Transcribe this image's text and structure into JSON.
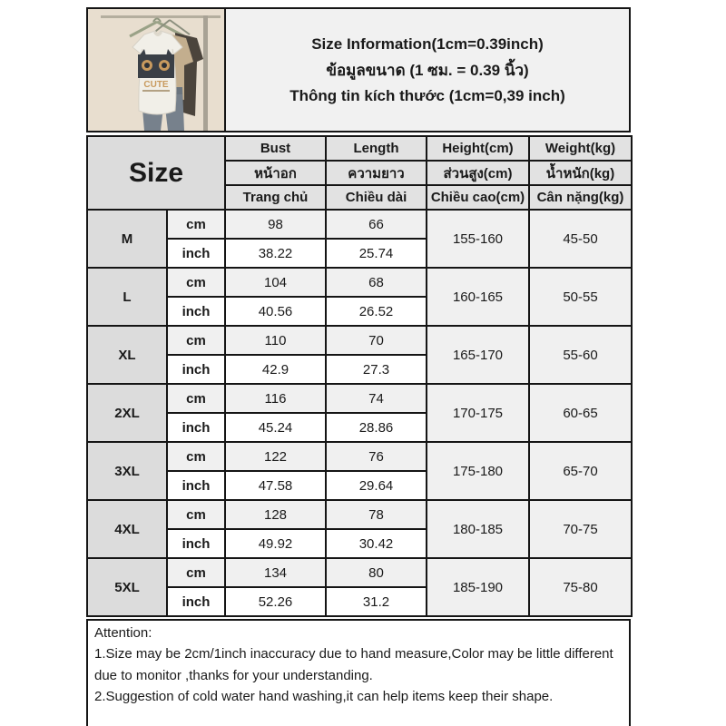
{
  "header": {
    "title_lines": [
      "Size Information(1cm=0.39inch)",
      "ข้อมูลขนาด (1 ซม. = 0.39 นิ้ว)",
      "Thông tin kích thước (1cm=0,39 inch)"
    ],
    "product_image": {
      "description": "t-shirts hanging on clothes rack",
      "graphic_text": "CUTE"
    }
  },
  "table": {
    "size_label": "Size",
    "column_headers": {
      "en": [
        "Bust",
        "Length",
        "Height(cm)",
        "Weight(kg)"
      ],
      "th": [
        "หน้าอก",
        "ความยาว",
        "ส่วนสูง(cm)",
        "น้ำหนัก(kg)"
      ],
      "vi": [
        "Trang chủ",
        "Chiều dài",
        "Chiều cao(cm)",
        "Cân nặng(kg)"
      ]
    },
    "unit_labels": [
      "cm",
      "inch"
    ],
    "rows": [
      {
        "size": "M",
        "bust_cm": "98",
        "length_cm": "66",
        "bust_inch": "38.22",
        "length_inch": "25.74",
        "height": "155-160",
        "weight": "45-50"
      },
      {
        "size": "L",
        "bust_cm": "104",
        "length_cm": "68",
        "bust_inch": "40.56",
        "length_inch": "26.52",
        "height": "160-165",
        "weight": "50-55"
      },
      {
        "size": "XL",
        "bust_cm": "110",
        "length_cm": "70",
        "bust_inch": "42.9",
        "length_inch": "27.3",
        "height": "165-170",
        "weight": "55-60"
      },
      {
        "size": "2XL",
        "bust_cm": "116",
        "length_cm": "74",
        "bust_inch": "45.24",
        "length_inch": "28.86",
        "height": "170-175",
        "weight": "60-65"
      },
      {
        "size": "3XL",
        "bust_cm": "122",
        "length_cm": "76",
        "bust_inch": "47.58",
        "length_inch": "29.64",
        "height": "175-180",
        "weight": "65-70"
      },
      {
        "size": "4XL",
        "bust_cm": "128",
        "length_cm": "78",
        "bust_inch": "49.92",
        "length_inch": "30.42",
        "height": "180-185",
        "weight": "70-75"
      },
      {
        "size": "5XL",
        "bust_cm": "134",
        "length_cm": "80",
        "bust_inch": "52.26",
        "length_inch": "31.2",
        "height": "185-190",
        "weight": "75-80"
      }
    ]
  },
  "attention": {
    "lines": [
      "Attention:",
      "1.Size may be 2cm/1inch inaccuracy due to hand measure,Color may be little different due to monitor ,thanks for your understanding.",
      "2.Suggestion of cold water hand washing,it can help items keep their shape."
    ]
  },
  "colors": {
    "border": "#151515",
    "header_cell_bg": "#e2e2e2",
    "size_cell_bg": "#dcdcdc",
    "cm_row_bg": "#f0f0f0",
    "inch_row_bg": "#ffffff",
    "title_box_bg": "#f1f1f1",
    "photo_bg": "#e8decf"
  }
}
